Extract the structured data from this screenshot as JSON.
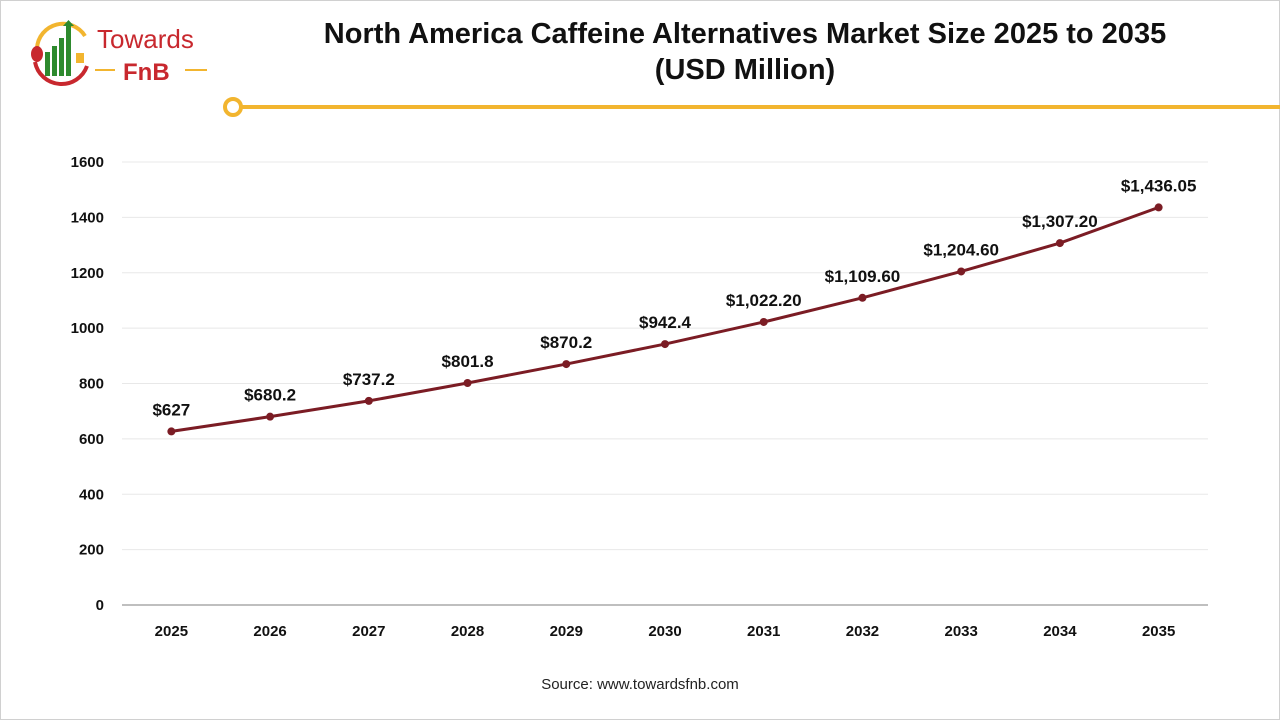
{
  "header": {
    "logo_text_1": "Towards",
    "logo_text_2": "FnB",
    "title_line1": "North America Caffeine Alternatives Market Size 2025 to 2035",
    "title_line2": "(USD Million)"
  },
  "footer": {
    "source": "Source: www.towardsfnb.com"
  },
  "colors": {
    "line": "#7b1c24",
    "accent": "#f2b52f",
    "logo_red": "#c8282e",
    "logo_green": "#2e8a2e",
    "grid": "#e8e8e8",
    "axis": "#bfbfbf"
  },
  "chart_data": {
    "type": "line",
    "title": "North America Caffeine Alternatives Market Size 2025 to 2035 (USD Million)",
    "categories": [
      "2025",
      "2026",
      "2027",
      "2028",
      "2029",
      "2030",
      "2031",
      "2032",
      "2033",
      "2034",
      "2035"
    ],
    "values": [
      627,
      680.2,
      737.2,
      801.8,
      870.2,
      942.4,
      1022.2,
      1109.6,
      1204.6,
      1307.2,
      1436.05
    ],
    "data_labels": [
      "$627",
      "$680.2",
      "$737.2",
      "$801.8",
      "$870.2",
      "$942.4",
      "$1,022.20",
      "$1,109.60",
      "$1,204.60",
      "$1,307.20",
      "$1,436.05"
    ],
    "ylim": [
      0,
      1600
    ],
    "yticks": [
      "0",
      "200",
      "400",
      "600",
      "800",
      "1000",
      "1200",
      "1400",
      "1600"
    ],
    "grid": true,
    "xlabel": "",
    "ylabel": ""
  }
}
